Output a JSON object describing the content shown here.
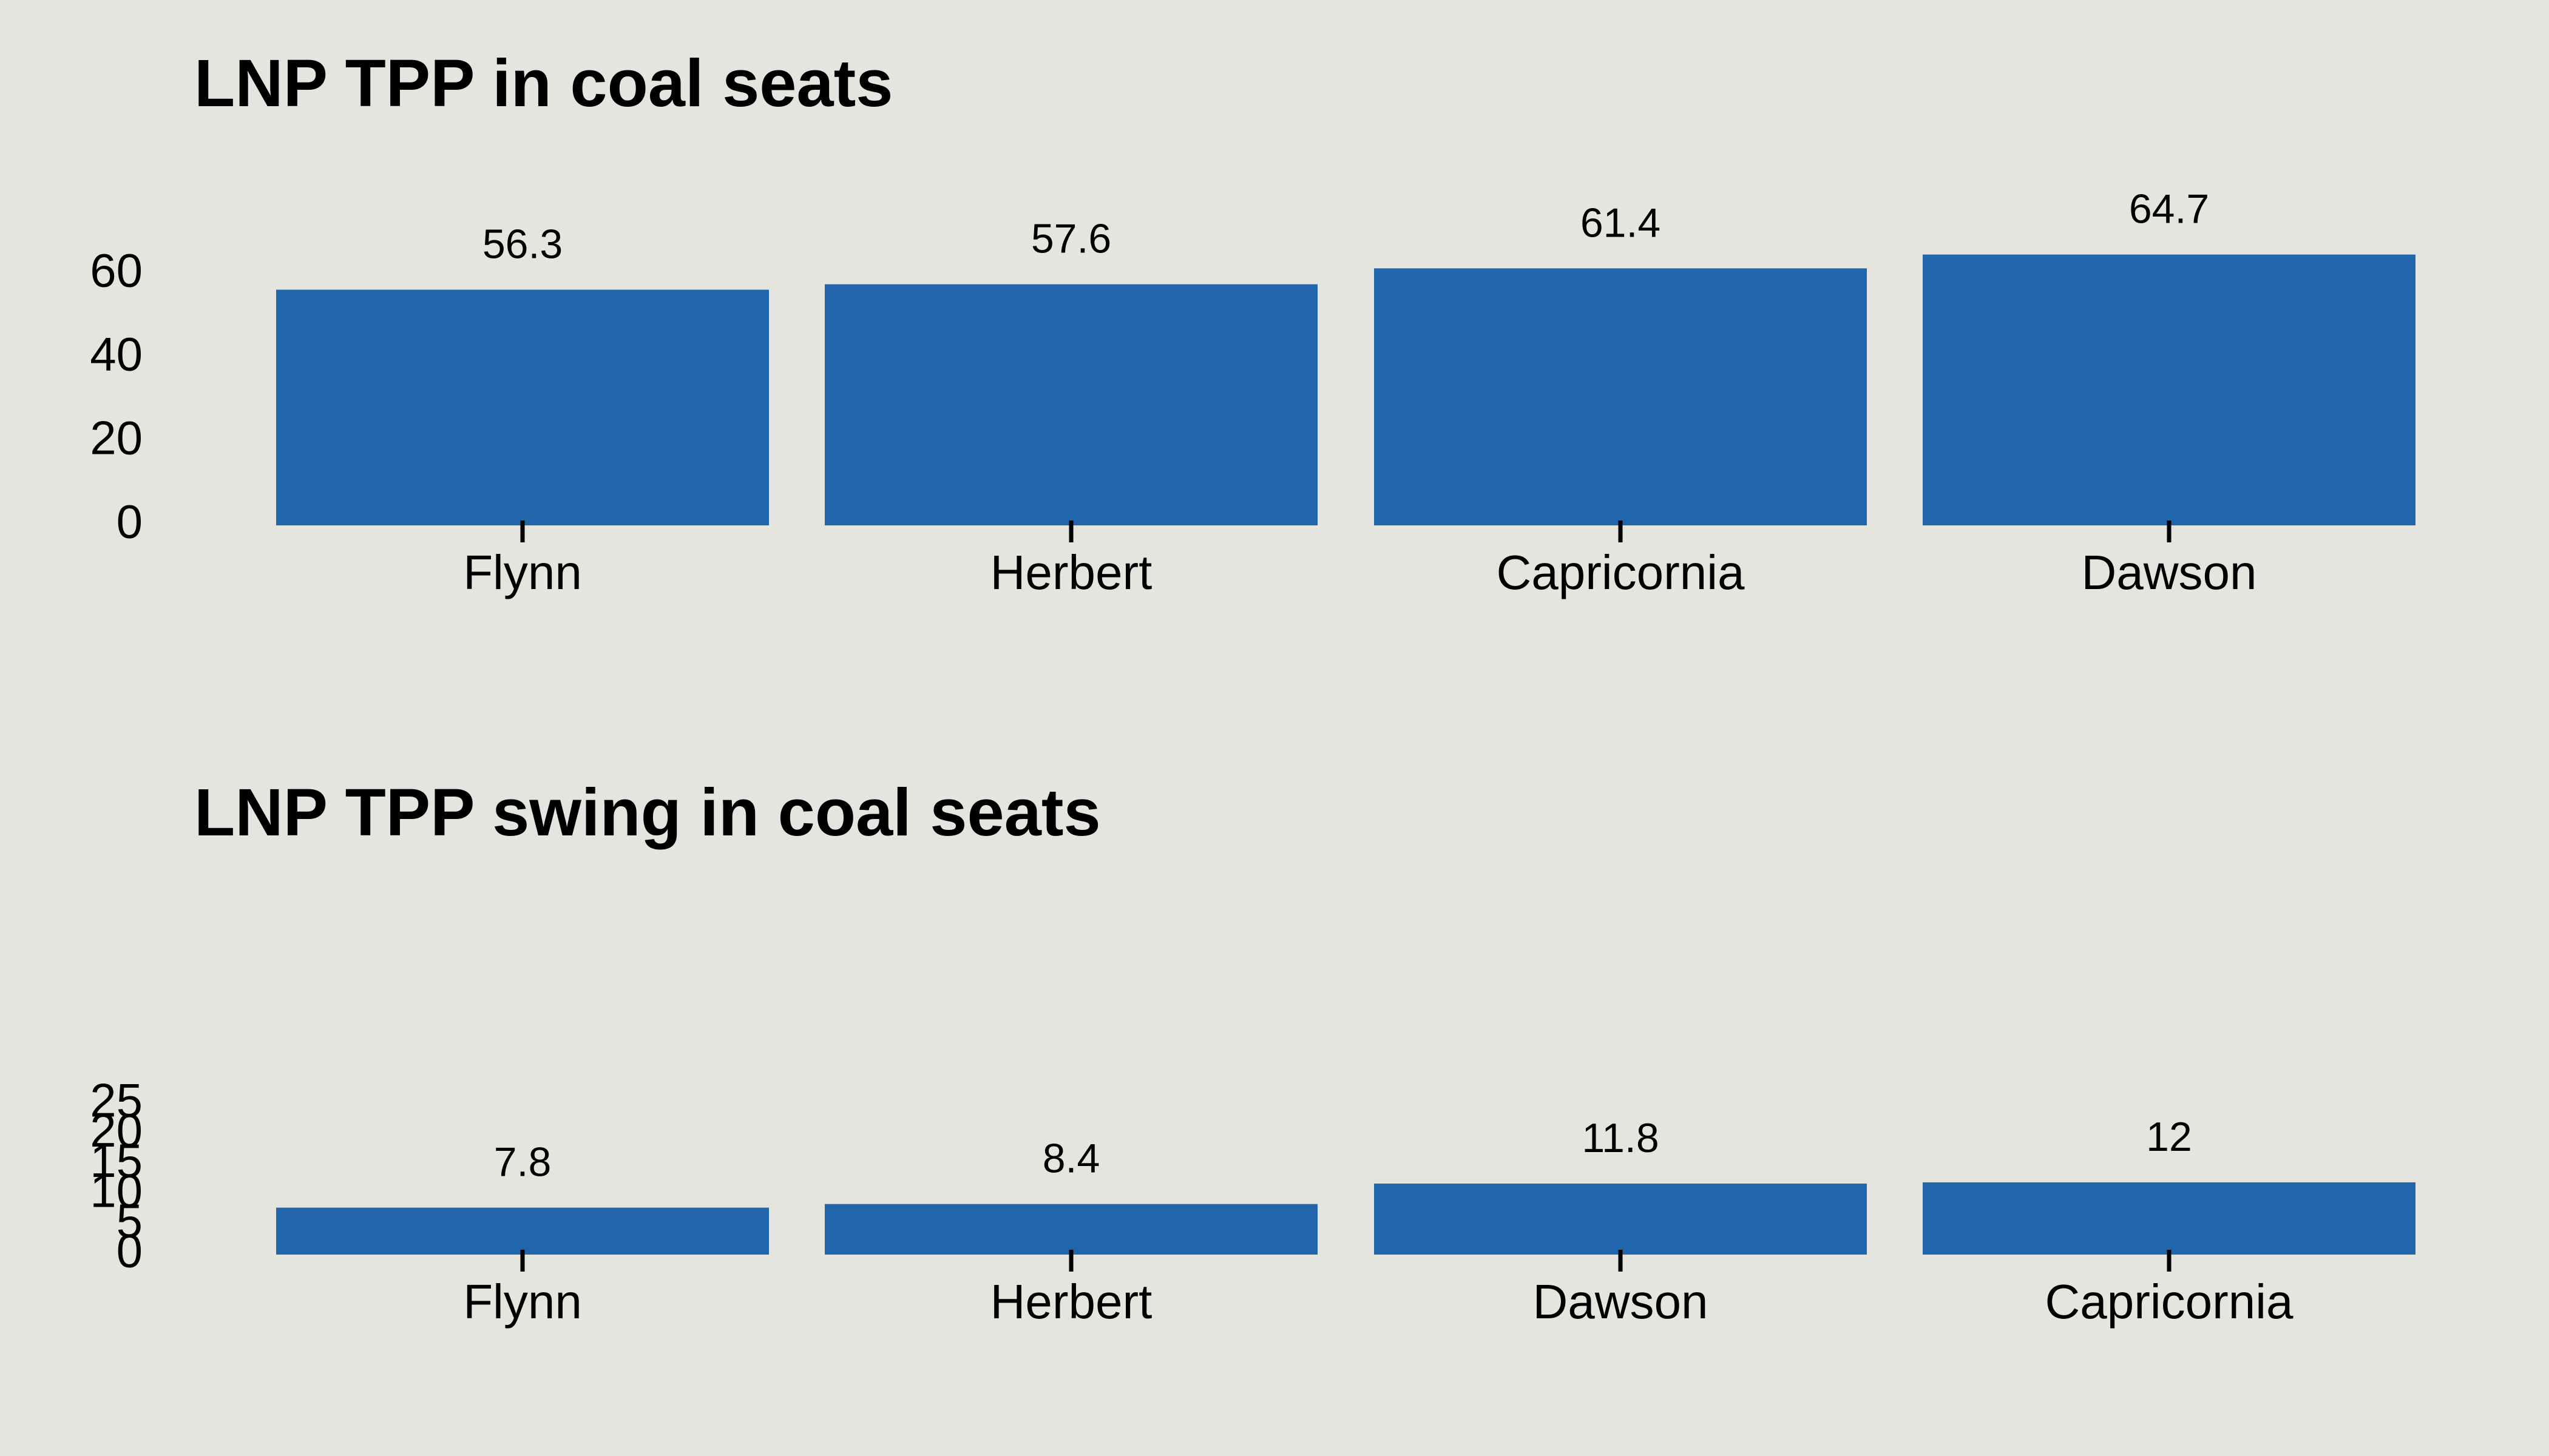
{
  "colors": {
    "background": "#e5e5e0",
    "bar": "#2166ac",
    "text": "#000000"
  },
  "chart_data": [
    {
      "type": "bar",
      "title": "LNP TPP in coal seats",
      "xlabel": "",
      "ylabel": "",
      "categories": [
        "Flynn",
        "Herbert",
        "Capricornia",
        "Dawson"
      ],
      "values": [
        56.3,
        57.6,
        61.4,
        64.7
      ],
      "data_labels": [
        "56.3",
        "57.6",
        "61.4",
        "64.7"
      ],
      "yticks": [
        "0",
        "20",
        "40",
        "60"
      ],
      "ylim": [
        0,
        60
      ],
      "grid": false,
      "legend": "none"
    },
    {
      "type": "bar",
      "title": "LNP TPP swing in coal seats",
      "xlabel": "",
      "ylabel": "",
      "categories": [
        "Flynn",
        "Herbert",
        "Dawson",
        "Capricornia"
      ],
      "values": [
        7.8,
        8.4,
        11.8,
        12
      ],
      "data_labels": [
        "7.8",
        "8.4",
        "11.8",
        "12"
      ],
      "yticks": [
        "0",
        "5",
        "10",
        "15",
        "20",
        "25"
      ],
      "ylim": [
        0,
        25
      ],
      "grid": false,
      "legend": "none"
    }
  ]
}
